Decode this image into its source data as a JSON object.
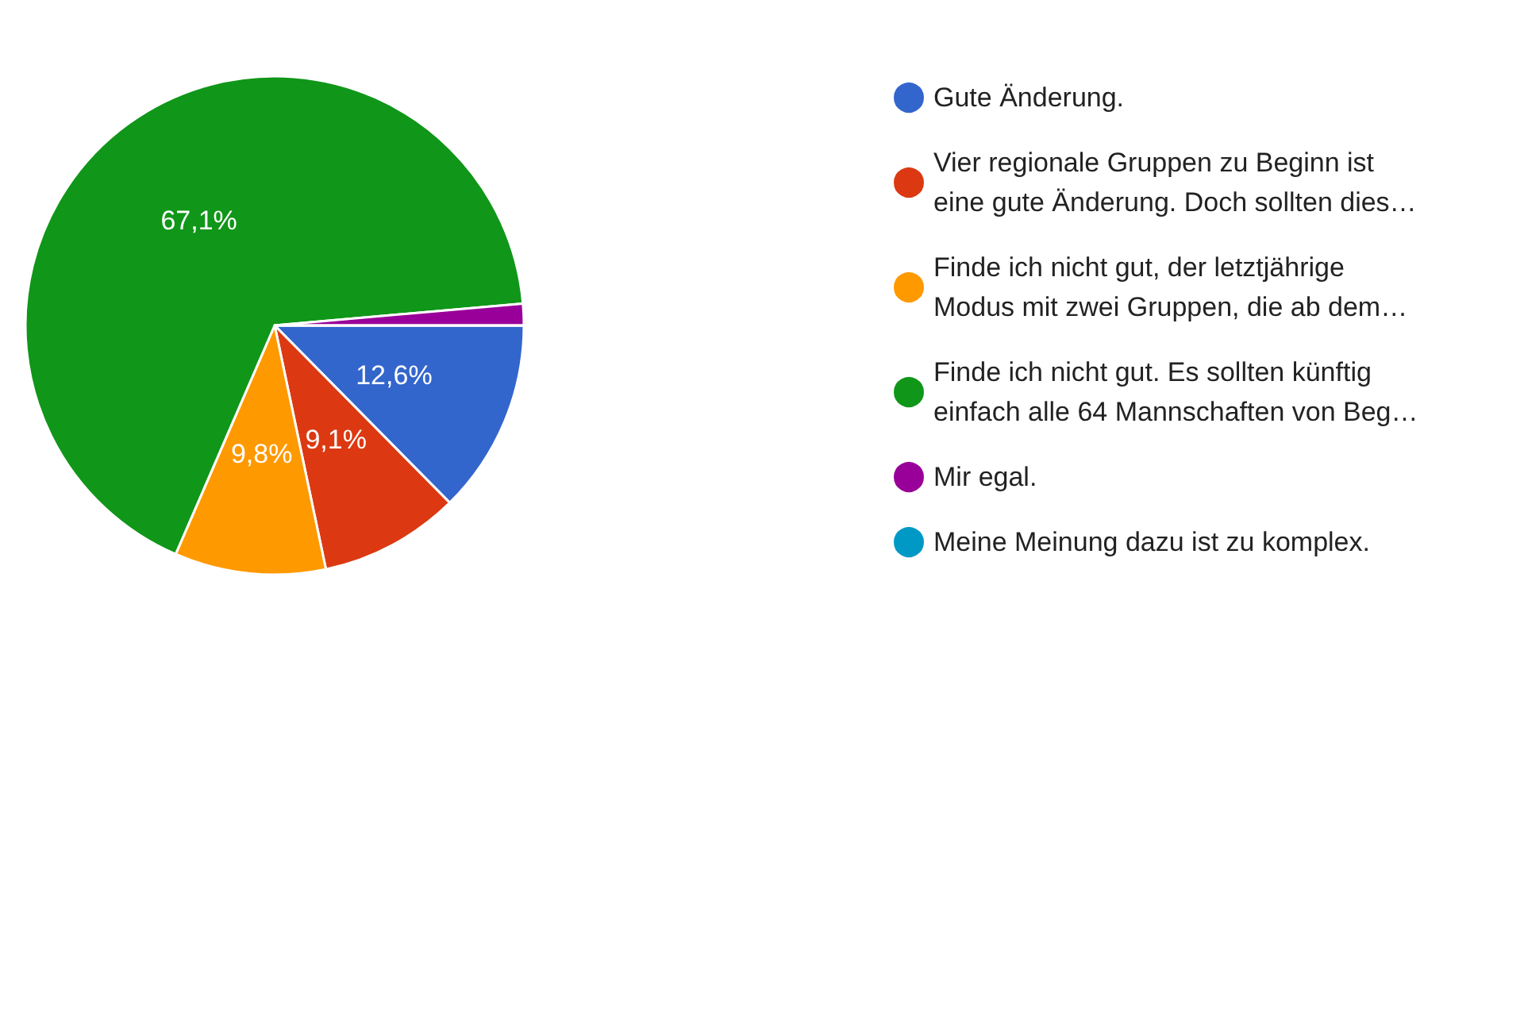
{
  "chart_data": {
    "type": "pie",
    "categories": [
      "Gute Änderung.",
      "Vier regionale Gruppen zu Beginn ist\neine gute Änderung. Doch sollten dies…",
      "Finde ich nicht gut, der letztjährige\nModus mit zwei Gruppen, die ab dem…",
      "Finde ich nicht gut. Es sollten künftig\neinfach alle 64 Mannschaften von Beg…",
      "Mir egal.",
      "Meine Meinung dazu ist zu komplex."
    ],
    "values": [
      12.6,
      9.1,
      9.8,
      67.1,
      1.4,
      0
    ],
    "value_labels": [
      "12,6%",
      "9,1%",
      "9,8%",
      "67,1%",
      null,
      null
    ],
    "colors": [
      "#3366cc",
      "#dc3912",
      "#ff9900",
      "#109618",
      "#990099",
      "#0099c6"
    ],
    "legend": "right"
  }
}
